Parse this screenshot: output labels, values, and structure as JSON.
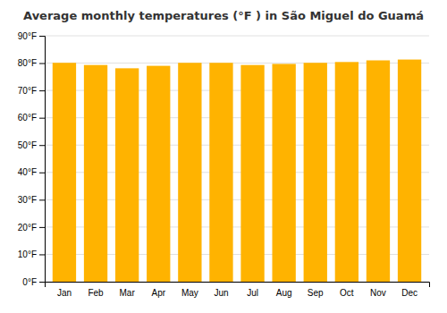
{
  "chart_data": {
    "type": "bar",
    "title": "Average monthly temperatures (°F ) in São Miguel do Guamá",
    "categories": [
      "Jan",
      "Feb",
      "Mar",
      "Apr",
      "May",
      "Jun",
      "Jul",
      "Aug",
      "Sep",
      "Oct",
      "Nov",
      "Dec"
    ],
    "values": [
      80.1,
      79.3,
      78.1,
      79.0,
      80.1,
      80.1,
      79.3,
      79.7,
      80.1,
      80.4,
      81.0,
      81.3
    ],
    "color": "#FFB300",
    "ylim": [
      0,
      90
    ],
    "yticks": [
      {
        "value": 0,
        "label": "0°F"
      },
      {
        "value": 10,
        "label": "10°F"
      },
      {
        "value": 20,
        "label": "20°F"
      },
      {
        "value": 30,
        "label": "30°F"
      },
      {
        "value": 40,
        "label": "40°F"
      },
      {
        "value": 50,
        "label": "50°F"
      },
      {
        "value": 60,
        "label": "60°F"
      },
      {
        "value": 70,
        "label": "70°F"
      },
      {
        "value": 80,
        "label": "80°F"
      },
      {
        "value": 90,
        "label": "90°F"
      }
    ],
    "grid": true
  }
}
